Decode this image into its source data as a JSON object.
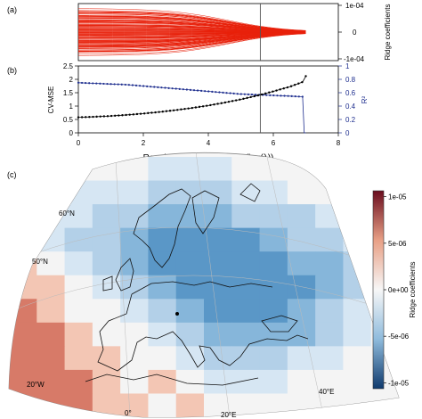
{
  "panels": {
    "a": "(a)",
    "b": "(b)",
    "c": "(c)"
  },
  "colors": {
    "ridge_paths": "#e8200a",
    "cv_mse": "#000000",
    "r2": "#1f2f8f",
    "vline": "#555555",
    "map_positive": "#c8423a",
    "map_negative": "#2f6fa8"
  },
  "chart_data": [
    {
      "type": "line",
      "panel": "a",
      "description_series": "ridge coefficient paths",
      "ylabel": "Ridge coefficients",
      "yticks": [
        "1e-04",
        "0",
        "-1e-04"
      ],
      "ytick_values": [
        0.0001,
        0,
        -0.0001
      ],
      "xlim": [
        0,
        8
      ],
      "ylim": [
        -0.0001,
        0.0001
      ],
      "paths_count": 120,
      "paths_start_range": [
        -9e-05,
        9e-05
      ],
      "paths_converge_x": 7.0,
      "vline_x": 5.6
    },
    {
      "type": "line",
      "panel": "b",
      "xlabel": "Regularization parameter (log(λ))",
      "xticks": [
        "0",
        "2",
        "4",
        "6",
        "8"
      ],
      "xtick_values": [
        0,
        2,
        4,
        6,
        8
      ],
      "xlim": [
        0,
        8
      ],
      "ylabel_left": "CV-MSE",
      "ylabel_right": "R²",
      "yticks_left": [
        "0",
        "0.5",
        "1",
        "1.5",
        "2",
        "2.5"
      ],
      "ytick_values_left": [
        0,
        0.5,
        1,
        1.5,
        2,
        2.5
      ],
      "ylim_left": [
        0,
        2.5
      ],
      "yticks_right": [
        "0",
        "0.2",
        "0.4",
        "0.6",
        "0.8",
        "1"
      ],
      "ytick_values_right": [
        0,
        0.2,
        0.4,
        0.6,
        0.8,
        1
      ],
      "ylim_right": [
        0,
        1
      ],
      "vline_x": 5.6,
      "series": [
        {
          "axis": "left",
          "x": [
            0.0,
            0.5,
            1.0,
            1.5,
            2.0,
            2.5,
            3.0,
            3.5,
            4.0,
            4.5,
            5.0,
            5.5,
            6.0,
            6.5,
            6.9,
            7.0
          ],
          "values": [
            0.58,
            0.6,
            0.63,
            0.67,
            0.72,
            0.78,
            0.85,
            0.93,
            1.02,
            1.13,
            1.25,
            1.39,
            1.55,
            1.72,
            1.9,
            2.12
          ]
        },
        {
          "axis": "right",
          "x": [
            0.0,
            0.5,
            1.0,
            1.5,
            2.0,
            2.5,
            3.0,
            3.5,
            4.0,
            4.5,
            5.0,
            5.5,
            6.0,
            6.5,
            6.9,
            6.95,
            7.0
          ],
          "values": [
            0.75,
            0.74,
            0.73,
            0.72,
            0.7,
            0.68,
            0.66,
            0.64,
            0.62,
            0.6,
            0.58,
            0.57,
            0.56,
            0.55,
            0.54,
            0.0,
            0.0
          ]
        }
      ]
    },
    {
      "type": "heatmap",
      "panel": "c",
      "legend_title": "Ridge coefficients",
      "legend_ticks": [
        "1e-05",
        "5e-06",
        "0e+00",
        "-5e-06",
        "-1e-05"
      ],
      "legend_tick_values": [
        1e-05,
        5e-06,
        0,
        -5e-06,
        -1e-05
      ],
      "lat_labels": [
        "60°N",
        "50°N"
      ],
      "lon_labels": [
        "20°W",
        "0°",
        "20°E",
        "40°E"
      ],
      "grid_cols": 14,
      "grid_rows": 11,
      "cells": [
        "000001110000xx",
        "001112221100xx",
        "011223332221xx",
        "01223444432211",
        "p0123444443321",
        "pp012344444321",
        "Pp001234443210",
        "PPp00123333210",
        "PPpp0012221100",
        "PPPp0p01110000",
        "PPPpp0p0000000"
      ]
    }
  ]
}
